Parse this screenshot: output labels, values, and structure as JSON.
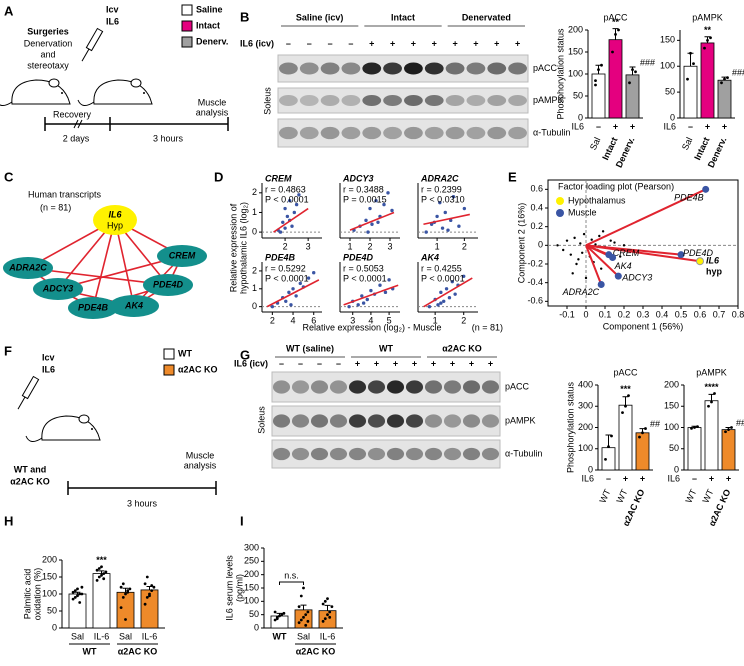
{
  "A": {
    "label": "A",
    "surgeries": "Surgeries",
    "surgeries_detail": [
      "Denervation",
      "and",
      "stereotaxy"
    ],
    "icv": "Icv",
    "il6": "IL6",
    "legend": [
      {
        "label": "Saline",
        "color": "#ffffff",
        "text_color": "#000000"
      },
      {
        "label": "Intact",
        "color": "#e4007f",
        "text_color": "#e4007f"
      },
      {
        "label": "Denerv.",
        "color": "#a0a0a0",
        "text_color": "#a0a0a0"
      }
    ],
    "timeline": [
      "Recovery",
      "2 days",
      "3 hours"
    ],
    "endpoint": [
      "Muscle",
      "analysis"
    ]
  },
  "B": {
    "label": "B",
    "blot": {
      "groups": [
        {
          "label": "Saline (icv)",
          "color": "#000000"
        },
        {
          "label": "Intact",
          "color": "#e4007f"
        },
        {
          "label": "Denervated",
          "color": "#a0a0a0"
        }
      ],
      "treatment_label": "IL6 (icv)",
      "treatment": [
        "–",
        "–",
        "–",
        "–",
        "+",
        "+",
        "+",
        "+",
        "+",
        "+",
        "+",
        "+"
      ],
      "rows": [
        "pACC",
        "pAMPK",
        "α-Tubulin"
      ],
      "tissue": "Soleus"
    },
    "charts": [
      {
        "type": "bar",
        "title": "pACC",
        "ylabel": "Phosphorylation status",
        "ylim": [
          0,
          200
        ],
        "yticks": [
          0,
          50,
          100,
          150,
          200
        ],
        "treatment_label": "IL6",
        "bars": [
          {
            "label": "Sal",
            "treatment": "–",
            "value": 100,
            "error": 20,
            "points": [
              85,
              110,
              120,
              75
            ],
            "color": "#ffffff",
            "text_color": "#000000"
          },
          {
            "label": "Intact",
            "treatment": "+",
            "value": 178,
            "error": 25,
            "points": [
              150,
              190,
              200
            ],
            "color": "#e4007f",
            "text_color": "#e4007f",
            "sig": "**"
          },
          {
            "label": "Denerv.",
            "treatment": "+",
            "value": 98,
            "error": 18,
            "points": [
              80,
              110,
              105
            ],
            "color": "#a0a0a0",
            "text_color": "#a0a0a0",
            "sig": "###"
          }
        ]
      },
      {
        "type": "bar",
        "title": "pAMPK",
        "ylim": [
          0,
          170
        ],
        "yticks": [
          0,
          50,
          100,
          150
        ],
        "treatment_label": "IL6",
        "bars": [
          {
            "label": "Sal",
            "treatment": "–",
            "value": 100,
            "error": 25,
            "points": [
              75,
              125,
              105
            ],
            "color": "#ffffff",
            "text_color": "#000000"
          },
          {
            "label": "Intact",
            "treatment": "+",
            "value": 145,
            "error": 12,
            "points": [
              135,
              150,
              155
            ],
            "color": "#e4007f",
            "text_color": "#e4007f",
            "sig": "**"
          },
          {
            "label": "Denerv.",
            "treatment": "+",
            "value": 73,
            "error": 6,
            "points": [
              68,
              75,
              78
            ],
            "color": "#a0a0a0",
            "text_color": "#a0a0a0",
            "sig": "###"
          }
        ]
      }
    ]
  },
  "C": {
    "label": "C",
    "title": "Human transcripts",
    "n": "(n = 81)",
    "nodes": [
      {
        "label": "IL6",
        "sublabel": "Hyp",
        "color": "#fff200"
      },
      {
        "label": "ADRA2C",
        "color": "#138f8c"
      },
      {
        "label": "CREM",
        "color": "#138f8c"
      },
      {
        "label": "ADCY3",
        "color": "#138f8c"
      },
      {
        "label": "PDE4D",
        "color": "#138f8c"
      },
      {
        "label": "PDE4B",
        "color": "#138f8c"
      },
      {
        "label": "AK4",
        "color": "#138f8c"
      }
    ]
  },
  "D": {
    "label": "D",
    "ylabel": [
      "Relative expression of",
      "hypothalamic IL6 (log₂)"
    ],
    "xlabel": "Relative expression (log₂) - Muscle",
    "n": "(n = 81)",
    "plots": [
      {
        "type": "scatter",
        "title": "CREM",
        "r": "r = 0.4863",
        "p": "P < 0.0001",
        "xlim": [
          1,
          3.6
        ],
        "xticks": [
          2,
          3
        ],
        "ylim": [
          -0.3,
          2.5
        ],
        "yticks": [
          0,
          1,
          2
        ],
        "x": [
          1.7,
          1.9,
          2.0,
          2.1,
          2.2,
          2.3,
          2.4,
          2.5,
          1.8,
          2.6,
          2.2,
          2.0
        ],
        "y": [
          0.1,
          0.5,
          1.2,
          0.8,
          1.6,
          0.3,
          1.0,
          1.4,
          0.0,
          1.9,
          0.6,
          0.2
        ],
        "fit": {
          "x": [
            1.5,
            3.0
          ],
          "y": [
            0.0,
            1.2
          ]
        }
      },
      {
        "type": "scatter",
        "title": "ADCY3",
        "r": "r = 0.3488",
        "p": "P = 0.0015",
        "xlim": [
          0.5,
          3.5
        ],
        "xticks": [
          1,
          2,
          3
        ],
        "ylim": [
          -0.3,
          2.5
        ],
        "x": [
          1.2,
          1.5,
          1.8,
          2.0,
          2.1,
          2.3,
          2.5,
          2.7,
          2.9,
          3.1,
          1.9,
          2.4
        ],
        "y": [
          0.1,
          0.3,
          0.6,
          1.2,
          0.4,
          1.6,
          0.8,
          1.4,
          2.0,
          1.1,
          0.0,
          0.5
        ],
        "fit": {
          "x": [
            1.0,
            3.2
          ],
          "y": [
            0.1,
            1.0
          ]
        }
      },
      {
        "type": "scatter",
        "title": "ADRA2C",
        "r": "r = 0.2399",
        "p": "P < 0.0310",
        "xlim": [
          0.3,
          2.5
        ],
        "xticks": [
          1,
          2
        ],
        "ylim": [
          -0.3,
          2.5
        ],
        "x": [
          0.6,
          0.8,
          1.0,
          1.1,
          1.2,
          1.3,
          1.5,
          1.6,
          1.8,
          2.0,
          1.4,
          0.9
        ],
        "y": [
          0.0,
          0.4,
          0.8,
          1.5,
          0.2,
          1.0,
          0.6,
          1.8,
          0.3,
          1.2,
          0.1,
          0.5
        ],
        "fit": {
          "x": [
            0.5,
            2.2
          ],
          "y": [
            0.4,
            0.9
          ]
        }
      },
      {
        "type": "scatter",
        "title": "PDE4B",
        "r": "r = 0.5292",
        "p": "P < 0.0001",
        "xlim": [
          1,
          6.8
        ],
        "xticks": [
          2,
          4,
          6
        ],
        "ylim": [
          -0.3,
          2.5
        ],
        "yticks": [
          0,
          1,
          2
        ],
        "x": [
          2.0,
          2.5,
          3.0,
          3.3,
          3.6,
          4.0,
          4.3,
          4.7,
          5.0,
          5.5,
          6.0,
          3.8
        ],
        "y": [
          0.0,
          0.2,
          0.5,
          0.3,
          0.8,
          1.0,
          0.6,
          1.3,
          1.1,
          1.6,
          1.9,
          0.1
        ],
        "fit": {
          "x": [
            1.5,
            6.5
          ],
          "y": [
            0.0,
            1.5
          ]
        }
      },
      {
        "type": "scatter",
        "title": "PDE4D",
        "r": "r = 0.5053",
        "p": "P < 0.0001",
        "xlim": [
          2.3,
          5.6
        ],
        "xticks": [
          3,
          4,
          5
        ],
        "ylim": [
          -0.3,
          2.5
        ],
        "x": [
          2.8,
          3.0,
          3.3,
          3.5,
          3.8,
          4.0,
          4.2,
          4.5,
          4.8,
          5.0,
          5.2,
          3.6
        ],
        "y": [
          0.0,
          0.3,
          0.1,
          0.6,
          0.4,
          0.9,
          0.7,
          1.2,
          0.8,
          1.5,
          1.0,
          0.2
        ],
        "fit": {
          "x": [
            2.5,
            5.5
          ],
          "y": [
            0.1,
            1.2
          ]
        }
      },
      {
        "type": "scatter",
        "title": "AK4",
        "r": "r = 0.4255",
        "p": "P < 0.0001",
        "xlim": [
          0.4,
          2.5
        ],
        "xticks": [
          1,
          2
        ],
        "ylim": [
          -0.3,
          2.5
        ],
        "x": [
          0.8,
          1.0,
          1.1,
          1.2,
          1.3,
          1.4,
          1.5,
          1.6,
          1.7,
          1.8,
          2.0,
          1.2
        ],
        "y": [
          0.0,
          0.4,
          0.1,
          0.8,
          0.3,
          1.0,
          0.5,
          1.4,
          0.7,
          1.2,
          1.7,
          0.2
        ],
        "fit": {
          "x": [
            0.6,
            2.3
          ],
          "y": [
            0.0,
            1.6
          ]
        }
      }
    ]
  },
  "E": {
    "label": "E",
    "type": "scatter",
    "title": "Factor loading plot (Pearson)",
    "xlabel": "Component 1 (56%)",
    "ylabel": "Component 2 (16%)",
    "xlim": [
      -0.2,
      0.8
    ],
    "ylim": [
      -0.65,
      0.7
    ],
    "xticks": [
      -0.1,
      0,
      0.1,
      0.2,
      0.3,
      0.4,
      0.5,
      0.6,
      0.7,
      0.8
    ],
    "yticks": [
      -0.6,
      -0.4,
      -0.2,
      0,
      0.2,
      0.4,
      0.6
    ],
    "vector_color": "#e0242f",
    "scores": {
      "x": [
        -0.15,
        -0.12,
        -0.1,
        -0.08,
        -0.06,
        -0.05,
        -0.03,
        -0.02,
        -0.01,
        0.01,
        0.02,
        0.03,
        0.04,
        0.05,
        0.06,
        0.07,
        0.08,
        0.1,
        0.12,
        0.15,
        0.18,
        0.2,
        0.22,
        -0.07,
        0.0,
        0.09,
        0.13,
        -0.04
      ],
      "y": [
        0.0,
        -0.05,
        0.05,
        -0.1,
        0.08,
        -0.2,
        0.02,
        -0.08,
        0.12,
        -0.03,
        -0.12,
        0.06,
        -0.18,
        0.01,
        -0.05,
        0.1,
        -0.25,
        -0.02,
        -0.08,
        0.03,
        -0.12,
        0.0,
        -0.05,
        -0.3,
        -0.35,
        0.15,
        0.05,
        -0.15
      ]
    },
    "series": [
      {
        "name": "Hypothalamus",
        "color": "#fff200",
        "loadings": [
          {
            "label": "IL6",
            "label2": "hyp",
            "x": 0.6,
            "y": -0.17
          }
        ]
      },
      {
        "name": "Muscle",
        "color": "#3a55a4",
        "loadings": [
          {
            "label": "PDE4B",
            "x": 0.63,
            "y": 0.6
          },
          {
            "label": "PDE4D",
            "x": 0.5,
            "y": -0.1
          },
          {
            "label": "CREM",
            "x": 0.12,
            "y": -0.1
          },
          {
            "label": "AK4",
            "x": 0.14,
            "y": -0.13
          },
          {
            "label": "ADCY3",
            "x": 0.17,
            "y": -0.33
          },
          {
            "label": "ADRA2C",
            "x": 0.08,
            "y": -0.42
          }
        ]
      }
    ]
  },
  "F": {
    "label": "F",
    "icv": "Icv",
    "il6": "IL6",
    "legend": [
      {
        "label": "WT",
        "color": "#ffffff",
        "text_color": "#000000"
      },
      {
        "label": "α2AC KO",
        "color": "#ee8a2a",
        "text_color": "#ee8a2a"
      }
    ],
    "subject": [
      {
        "text": "WT and",
        "color": "#000000"
      },
      {
        "text": "α2AC KO",
        "color": "#ee8a2a"
      }
    ],
    "timeline": "3 hours",
    "endpoint": [
      "Muscle",
      "analysis"
    ]
  },
  "G": {
    "label": "G",
    "blot": {
      "groups": [
        {
          "label": "WT (saline)",
          "color": "#000000"
        },
        {
          "label": "WT",
          "color": "#000000"
        },
        {
          "label": "α2AC KO",
          "color": "#ee8a2a"
        }
      ],
      "treatment_label": "IL6 (icv)",
      "treatment": [
        "–",
        "–",
        "–",
        "–",
        "+",
        "+",
        "+",
        "+",
        "+",
        "+",
        "+",
        "+"
      ],
      "rows": [
        "pACC",
        "pAMPK",
        "α-Tubulin"
      ],
      "tissue": "Soleus"
    },
    "charts": [
      {
        "type": "bar",
        "title": "pACC",
        "ylabel": "Phosphorylation status",
        "ylim": [
          0,
          400
        ],
        "yticks": [
          0,
          100,
          200,
          300,
          400
        ],
        "treatment_label": "IL6",
        "bars": [
          {
            "label": "WT",
            "treatment": "–",
            "value": 105,
            "error": 60,
            "points": [
              50,
              110,
              160
            ],
            "color": "#ffffff",
            "text_color": "#000000"
          },
          {
            "label": "WT",
            "treatment": "+",
            "value": 305,
            "error": 40,
            "points": [
              270,
              300,
              350
            ],
            "color": "#ffffff",
            "text_color": "#000000",
            "sig": "***"
          },
          {
            "label": "α2AC KO",
            "treatment": "+",
            "value": 175,
            "error": 20,
            "points": [
              155,
              175,
              195
            ],
            "color": "#ee8a2a",
            "text_color": "#ee8a2a",
            "sig": "##"
          }
        ]
      },
      {
        "type": "bar",
        "title": "pAMPK",
        "ylim": [
          0,
          200
        ],
        "yticks": [
          0,
          50,
          100,
          150,
          200
        ],
        "treatment_label": "IL6",
        "bars": [
          {
            "label": "WT",
            "treatment": "–",
            "value": 100,
            "error": 3,
            "points": [
              98,
              100,
              102
            ],
            "color": "#ffffff",
            "text_color": "#000000"
          },
          {
            "label": "WT",
            "treatment": "+",
            "value": 163,
            "error": 15,
            "points": [
              150,
              160,
              180
            ],
            "color": "#ffffff",
            "text_color": "#000000",
            "sig": "****"
          },
          {
            "label": "α2AC KO",
            "treatment": "+",
            "value": 95,
            "error": 5,
            "points": [
              90,
              95,
              100
            ],
            "color": "#ee8a2a",
            "text_color": "#ee8a2a",
            "sig": "####"
          }
        ]
      }
    ]
  },
  "H": {
    "label": "H",
    "type": "grouped_bar",
    "ylabel": [
      "Palmitic acid",
      "oxidation (%)"
    ],
    "ylim": [
      0,
      200
    ],
    "yticks": [
      0,
      50,
      100,
      150,
      200
    ],
    "groups": [
      {
        "label": "WT",
        "color": "#000000",
        "bars": [
          {
            "label": "Sal",
            "value": 100,
            "error": 5,
            "points": [
              85,
              90,
              95,
              100,
              100,
              105,
              110,
              115,
              75,
              120
            ],
            "color": "#ffffff"
          },
          {
            "label": "IL-6",
            "value": 160,
            "error": 8,
            "points": [
              140,
              150,
              155,
              160,
              165,
              170,
              175,
              180,
              145
            ],
            "color": "#ffffff",
            "sig": "***"
          }
        ]
      },
      {
        "label": "α2AC KO",
        "color": "#ee8a2a",
        "bars": [
          {
            "label": "Sal",
            "value": 105,
            "error": 12,
            "points": [
              60,
              90,
              100,
              110,
              115,
              120,
              130,
              25,
              105
            ],
            "color": "#ee8a2a"
          },
          {
            "label": "IL-6",
            "value": 112,
            "error": 10,
            "points": [
              70,
              90,
              100,
              110,
              120,
              130,
              150,
              95,
              125
            ],
            "color": "#ee8a2a"
          }
        ]
      }
    ]
  },
  "I": {
    "label": "I",
    "type": "grouped_bar",
    "ylabel": [
      "IL6 serum levels",
      "(pg/ml)"
    ],
    "ylim": [
      0,
      300
    ],
    "yticks": [
      0,
      50,
      100,
      150,
      200,
      250,
      300
    ],
    "comparison": "n.s.",
    "groups": [
      {
        "label": "WT",
        "color": "#000000",
        "bars": [
          {
            "value": 45,
            "error": 10,
            "points": [
              30,
              40,
              45,
              50,
              55,
              60,
              35
            ],
            "color": "#ffffff"
          }
        ]
      },
      {
        "label": "α2AC KO",
        "color": "#ee8a2a",
        "bars": [
          {
            "label": "Sal",
            "value": 68,
            "error": 18,
            "points": [
              20,
              30,
              40,
              50,
              60,
              80,
              120,
              150,
              10,
              25
            ],
            "color": "#ee8a2a"
          },
          {
            "label": "IL-6",
            "value": 65,
            "error": 20,
            "points": [
              25,
              35,
              50,
              60,
              80,
              90,
              100,
              110,
              40
            ],
            "color": "#ee8a2a"
          }
        ]
      }
    ]
  }
}
